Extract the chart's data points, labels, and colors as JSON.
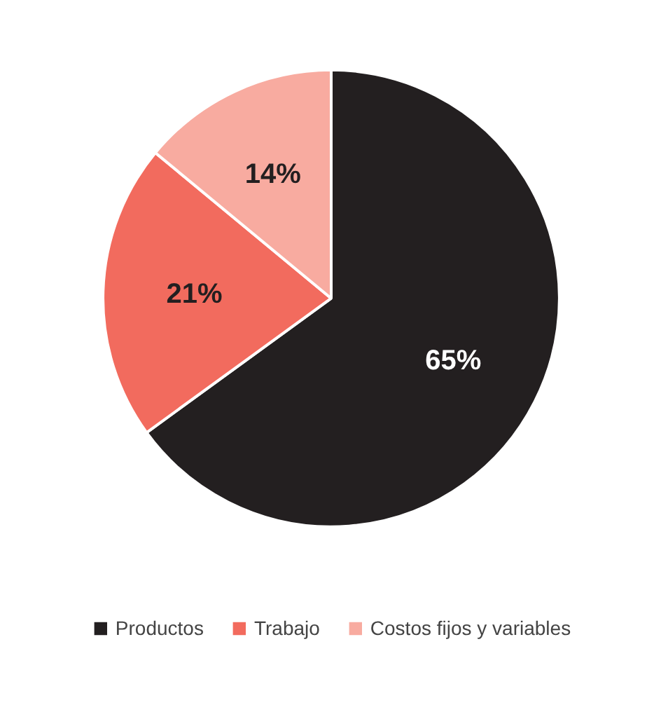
{
  "chart_data": {
    "type": "pie",
    "categories": [
      "Productos",
      "Trabajo",
      "Costos fijos y variables"
    ],
    "values": [
      65,
      21,
      14
    ],
    "colors": [
      "#231f20",
      "#f26b5e",
      "#f8aba0"
    ],
    "value_labels": [
      "65%",
      "21%",
      "14%"
    ],
    "legend": "bottom"
  }
}
